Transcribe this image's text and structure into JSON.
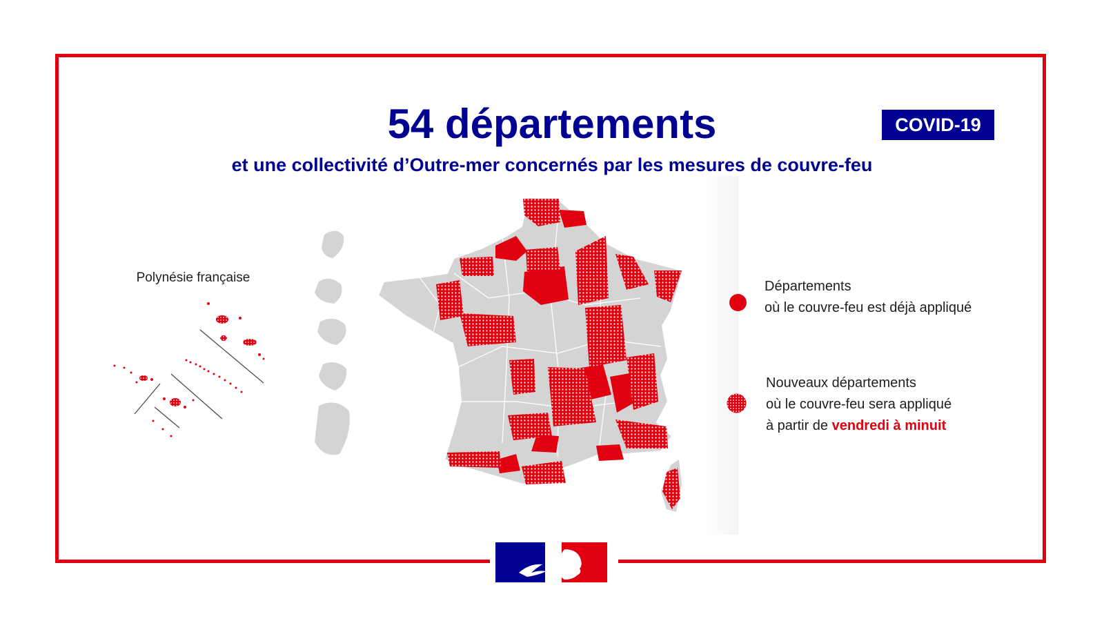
{
  "header": {
    "title": "54 départements",
    "subtitle": "et une collectivité d’Outre-mer concernés par les mesures de couvre-feu",
    "badge": "COVID-19"
  },
  "map": {
    "overseas_label": "Polynésie française",
    "colors": {
      "curfew_red": "#e1000f",
      "land_grey": "#d4d4d4",
      "navy": "#000091"
    }
  },
  "legend": {
    "items": [
      {
        "style": "solid",
        "line1": "Départements",
        "line2": "où le couvre-feu est déjà appliqué"
      },
      {
        "style": "hatched",
        "line1": "Nouveaux départements",
        "line2": "où le couvre-feu sera appliqué",
        "line3_prefix": "à partir de",
        "line3_highlight": "vendredi à minuit"
      }
    ]
  },
  "footer": {
    "logo": "marianne-logo"
  }
}
